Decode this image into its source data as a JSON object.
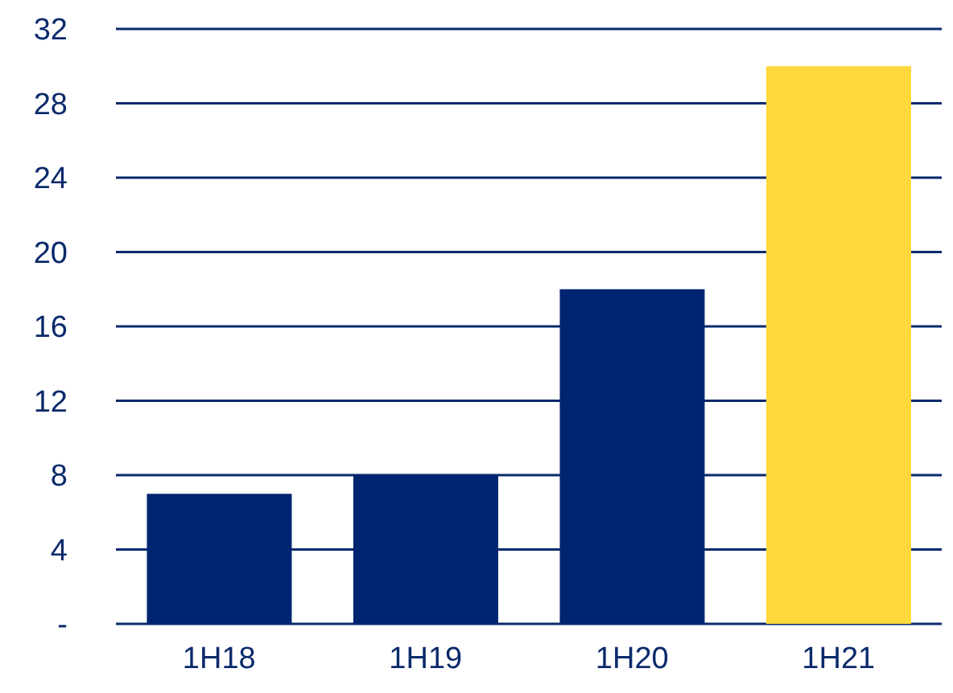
{
  "chart_data": {
    "type": "bar",
    "categories": [
      "1H18",
      "1H19",
      "1H20",
      "1H21"
    ],
    "values": [
      7,
      8,
      18,
      30
    ],
    "colors": [
      "#002570",
      "#002570",
      "#002570",
      "#ffd83b"
    ],
    "ylim": [
      0,
      32
    ],
    "yticks": [
      {
        "value": 0,
        "label": "-"
      },
      4,
      8,
      12,
      16,
      20,
      24,
      28,
      32
    ],
    "grid": "y"
  }
}
